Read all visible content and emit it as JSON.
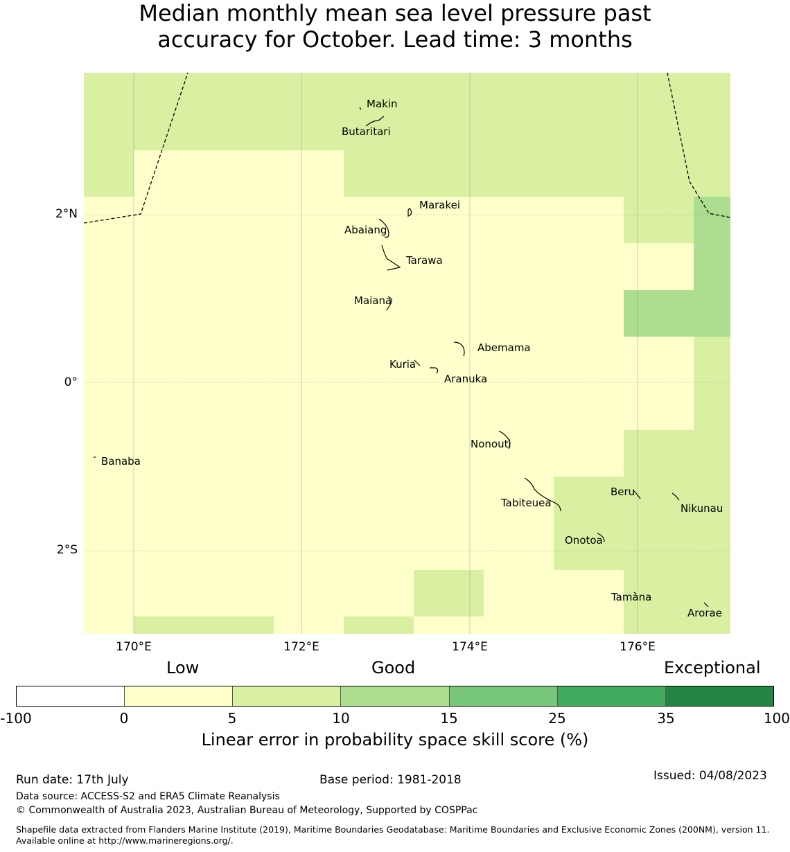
{
  "title_line1": "Median monthly mean sea level pressure past",
  "title_line2": "accuracy for October. Lead time: 3 months",
  "map": {
    "lon_labels": [
      "170°E",
      "172°E",
      "174°E",
      "176°E"
    ],
    "lat_labels": [
      "2°N",
      "0°",
      "2°S"
    ],
    "islands": [
      {
        "name": "Makin"
      },
      {
        "name": "Butaritari"
      },
      {
        "name": "Marakei"
      },
      {
        "name": "Abaiang"
      },
      {
        "name": "Tarawa"
      },
      {
        "name": "Maiana"
      },
      {
        "name": "Abemama"
      },
      {
        "name": "Kuria"
      },
      {
        "name": "Aranuka"
      },
      {
        "name": "Nonouti"
      },
      {
        "name": "Banaba"
      },
      {
        "name": "Tabiteuea"
      },
      {
        "name": "Beru"
      },
      {
        "name": "Nikunau"
      },
      {
        "name": "Onotoa"
      },
      {
        "name": "Tamana"
      },
      {
        "name": "Arorae"
      }
    ],
    "colors": {
      "c0_5": "#ffffcc",
      "c5_10": "#d9f0a3",
      "c10_15": "#addd8e",
      "boundary": "#000000"
    }
  },
  "legend": {
    "categories": [
      "Low",
      "Good",
      "Exceptional"
    ],
    "ticks": [
      "-100",
      "0",
      "5",
      "10",
      "15",
      "25",
      "35",
      "100"
    ],
    "colors": [
      "#ffffff",
      "#ffffcc",
      "#d9f0a3",
      "#addd8e",
      "#78c679",
      "#41ab5d",
      "#238443"
    ],
    "label": "Linear error in probability space skill score (%)"
  },
  "footer": {
    "run_date": "Run date: 17th July",
    "base_period": "Base period: 1981-2018",
    "issued": "Issued: 04/08/2023",
    "data_source": "Data source: ACCESS-S2 and ERA5 Climate Reanalysis",
    "copyright": "© Commonwealth of Australia 2023, Australian Bureau of Meteorology, Supported by COSPPac",
    "shapefile": "Shapefile data extracted from Flanders Marine Institute (2019), Maritime Boundaries Geodatabase: Maritime Boundaries and Exclusive Economic Zones (200NM), version 11. Available online at http://www.marineregions.org/."
  }
}
